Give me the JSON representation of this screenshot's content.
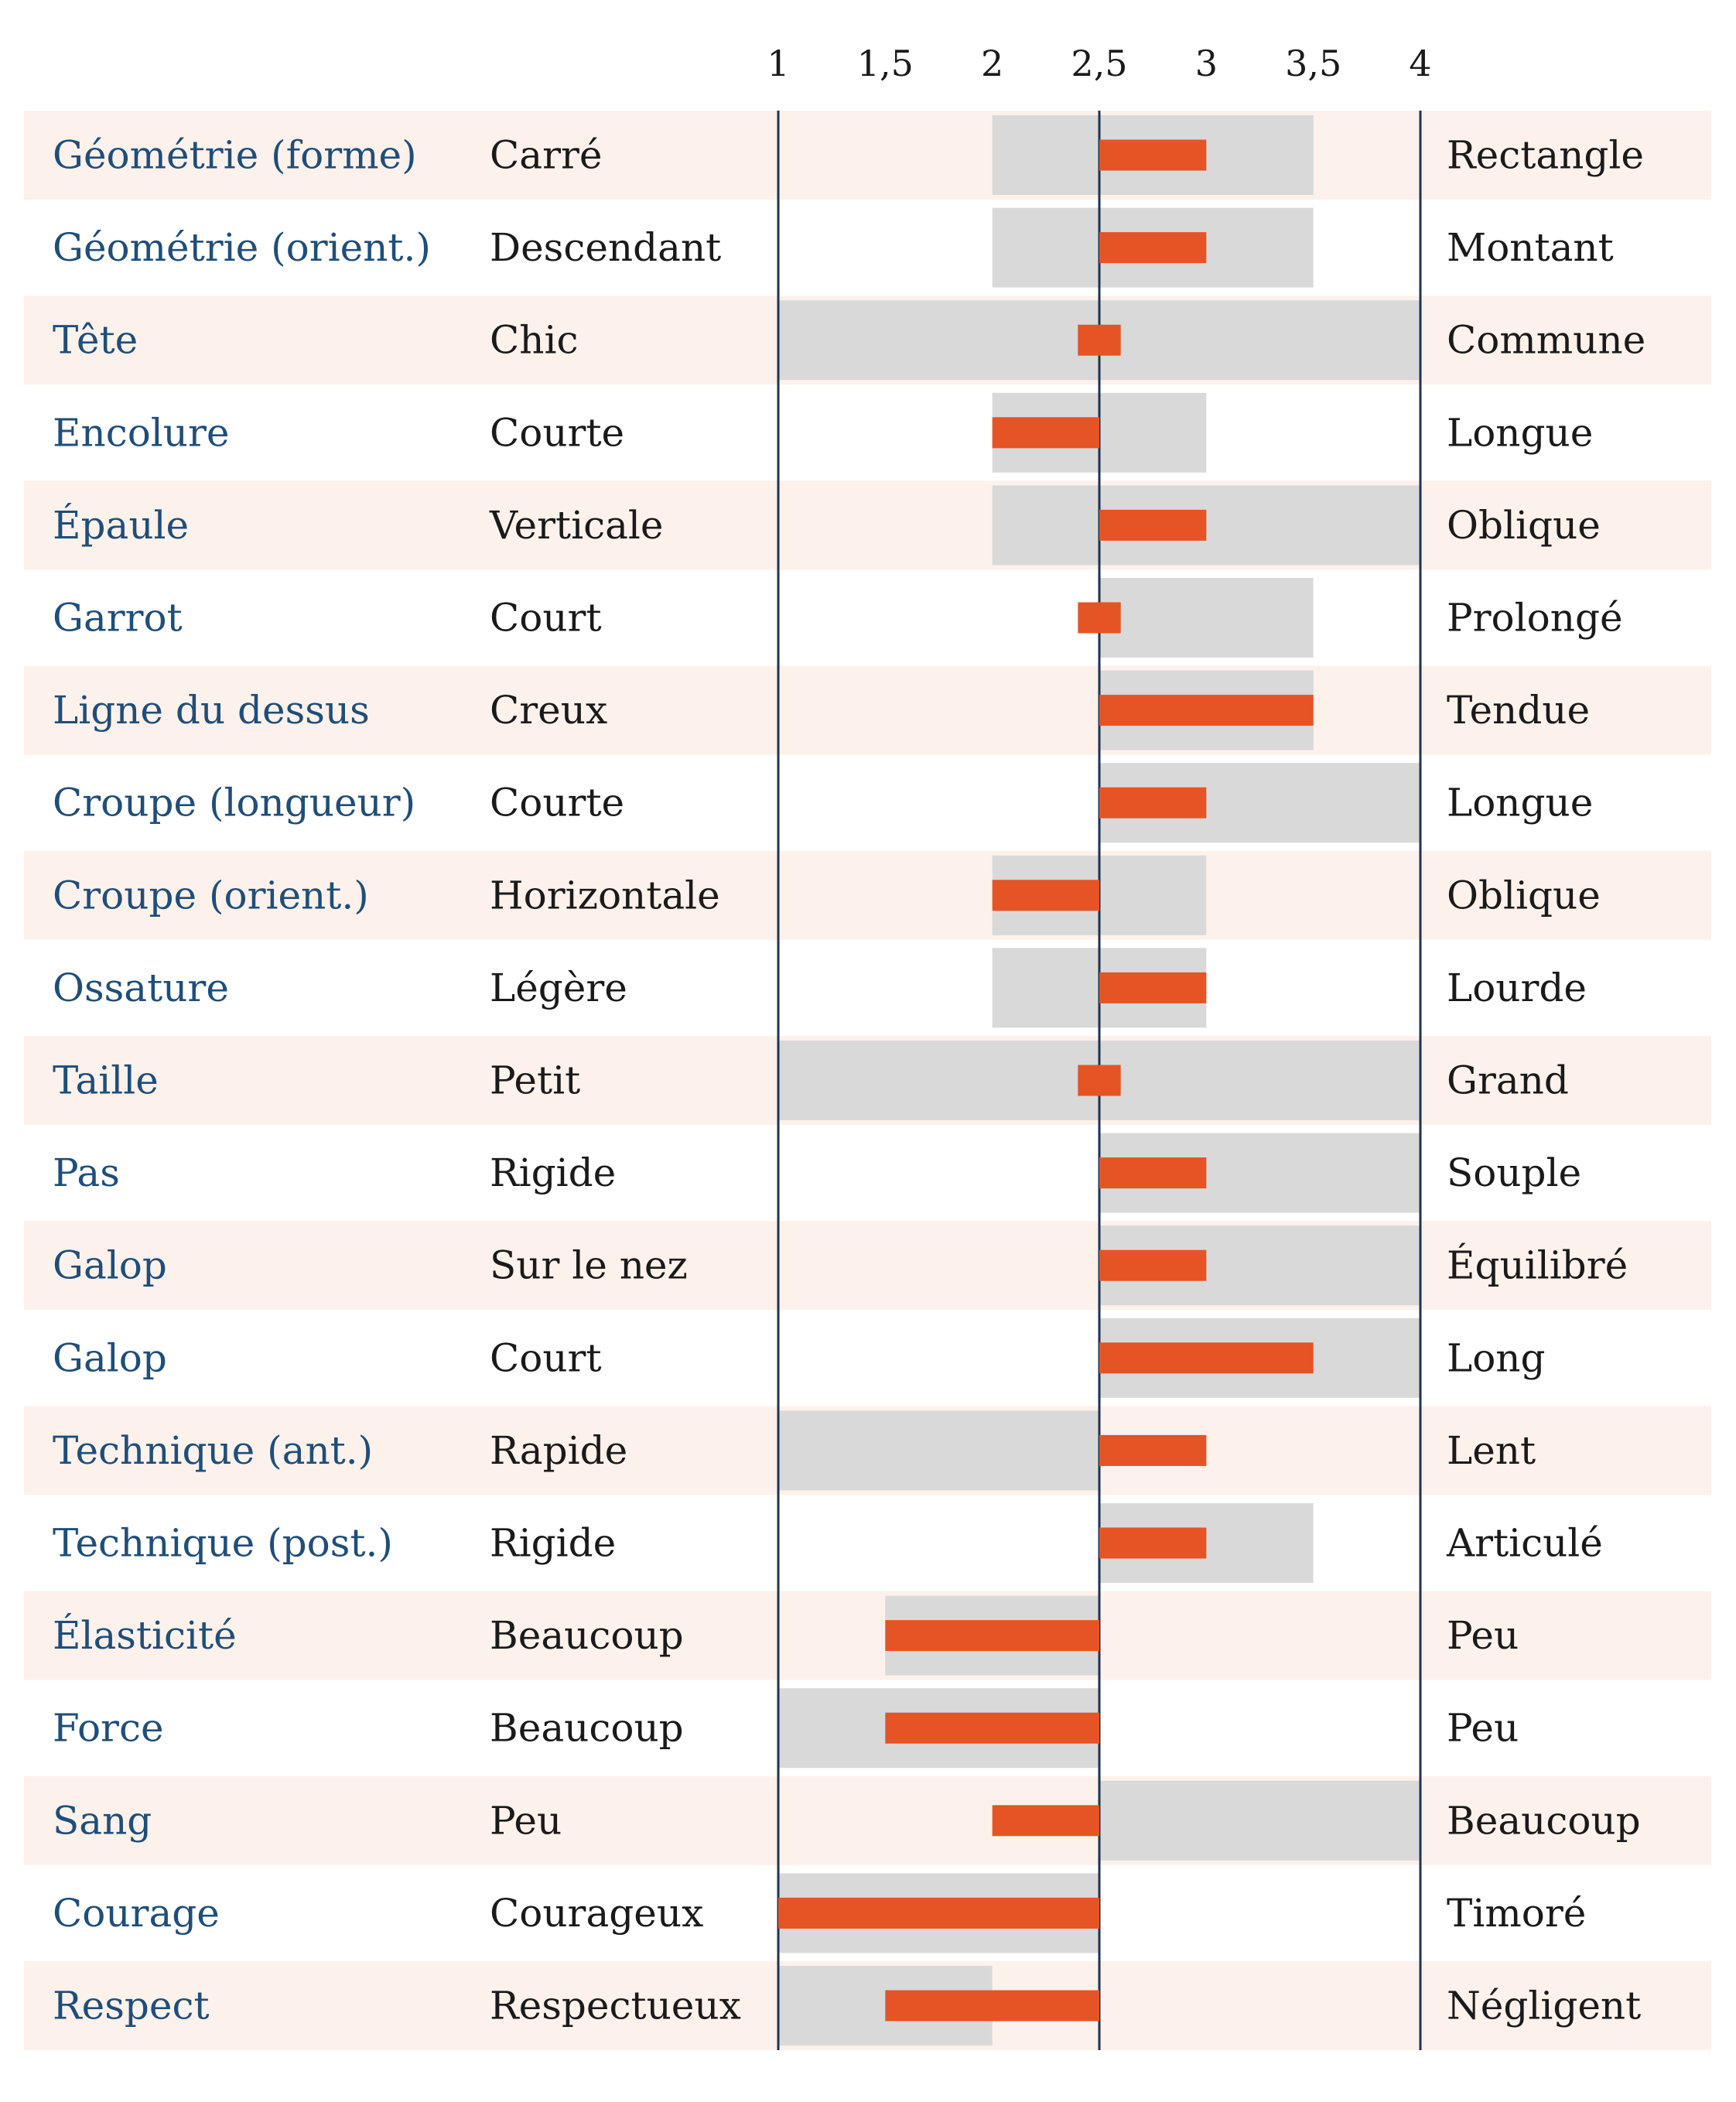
{
  "chart_data": {
    "type": "bar",
    "x_ticks": [
      "1",
      "1,5",
      "2",
      "2,5",
      "3",
      "3,5",
      "4"
    ],
    "x_tick_values": [
      1,
      1.5,
      2,
      2.5,
      3,
      3.5,
      4
    ],
    "xlim": [
      1,
      4
    ],
    "center": 2.5,
    "colors": {
      "band_odd": "#fdf1ec",
      "band_even": "#ffffff",
      "range_bar": "#d9d9d9",
      "value_bar": "#e55425",
      "category_text": "#1f4e79",
      "axis_line": "#1f3350"
    },
    "rows": [
      {
        "category": "Géométrie (forme)",
        "low_label": "Carré",
        "high_label": "Rectangle",
        "range": [
          2,
          3.5
        ],
        "value": 3
      },
      {
        "category": "Géométrie (orient.)",
        "low_label": "Descendant",
        "high_label": "Montant",
        "range": [
          2,
          3.5
        ],
        "value": 3
      },
      {
        "category": "Tête",
        "low_label": "Chic",
        "high_label": "Commune",
        "range": [
          1,
          4
        ],
        "value": 2.6,
        "value_from": 2.4
      },
      {
        "category": "Encolure",
        "low_label": "Courte",
        "high_label": "Longue",
        "range": [
          2,
          3
        ],
        "value": 2
      },
      {
        "category": "Épaule",
        "low_label": "Verticale",
        "high_label": "Oblique",
        "range": [
          2,
          4
        ],
        "value": 3
      },
      {
        "category": "Garrot",
        "low_label": "Court",
        "high_label": "Prolongé",
        "range": [
          2.5,
          3.5
        ],
        "value": 2.6,
        "value_from": 2.4
      },
      {
        "category": "Ligne du dessus",
        "low_label": "Creux",
        "high_label": "Tendue",
        "range": [
          2.5,
          3.5
        ],
        "value": 3.5
      },
      {
        "category": "Croupe (longueur)",
        "low_label": "Courte",
        "high_label": "Longue",
        "range": [
          2.5,
          4
        ],
        "value": 3
      },
      {
        "category": "Croupe (orient.)",
        "low_label": "Horizontale",
        "high_label": "Oblique",
        "range": [
          2,
          3
        ],
        "value": 2
      },
      {
        "category": "Ossature",
        "low_label": "Légère",
        "high_label": "Lourde",
        "range": [
          2,
          3
        ],
        "value": 3
      },
      {
        "category": "Taille",
        "low_label": "Petit",
        "high_label": "Grand",
        "range": [
          1,
          4
        ],
        "value": 2.6,
        "value_from": 2.4
      },
      {
        "category": "Pas",
        "low_label": "Rigide",
        "high_label": "Souple",
        "range": [
          2.5,
          4
        ],
        "value": 3
      },
      {
        "category": "Galop",
        "low_label": "Sur le nez",
        "high_label": "Équilibré",
        "range": [
          2.5,
          4
        ],
        "value": 3
      },
      {
        "category": "Galop",
        "low_label": "Court",
        "high_label": "Long",
        "range": [
          2.5,
          4
        ],
        "value": 3.5
      },
      {
        "category": "Technique (ant.)",
        "low_label": "Rapide",
        "high_label": "Lent",
        "range": [
          1,
          2.5
        ],
        "value": 3
      },
      {
        "category": "Technique (post.)",
        "low_label": "Rigide",
        "high_label": "Articulé",
        "range": [
          2.5,
          3.5
        ],
        "value": 3
      },
      {
        "category": "Élasticité",
        "low_label": "Beaucoup",
        "high_label": "Peu",
        "range": [
          1.5,
          2.5
        ],
        "value": 1.5
      },
      {
        "category": "Force",
        "low_label": "Beaucoup",
        "high_label": "Peu",
        "range": [
          1,
          2.5
        ],
        "value": 1.5
      },
      {
        "category": "Sang",
        "low_label": "Peu",
        "high_label": "Beaucoup",
        "range": [
          2.5,
          4
        ],
        "value": 2
      },
      {
        "category": "Courage",
        "low_label": "Courageux",
        "high_label": "Timoré",
        "range": [
          1,
          2.5
        ],
        "value": 1
      },
      {
        "category": "Respect",
        "low_label": "Respectueux",
        "high_label": "Négligent",
        "range": [
          1,
          2
        ],
        "value": 1.5
      }
    ]
  }
}
